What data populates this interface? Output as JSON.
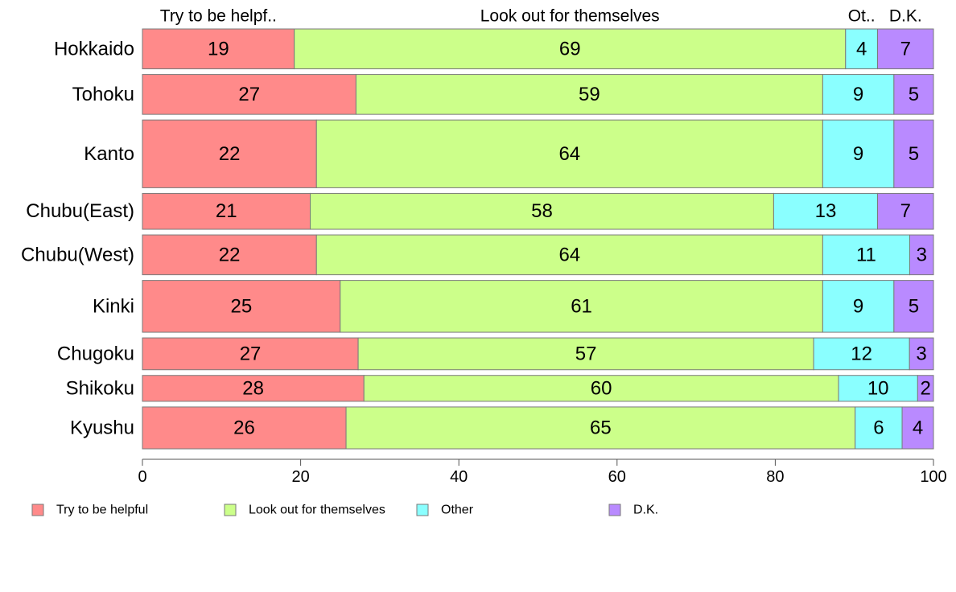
{
  "chart_data": {
    "type": "bar",
    "orientation": "horizontal",
    "stacked": true,
    "categories": [
      "Hokkaido",
      "Tohoku",
      "Kanto",
      "Chubu(East)",
      "Chubu(West)",
      "Kinki",
      "Chugoku",
      "Shikoku",
      "Kyushu"
    ],
    "series": [
      {
        "name": "Try to be helpful",
        "color": "#ff8a8a",
        "values": [
          19,
          27,
          22,
          21,
          22,
          25,
          27,
          28,
          26
        ]
      },
      {
        "name": "Look out for themselves",
        "color": "#ccff8a",
        "values": [
          69,
          59,
          64,
          58,
          64,
          61,
          57,
          60,
          65
        ]
      },
      {
        "name": "Other",
        "color": "#8affff",
        "values": [
          4,
          9,
          9,
          13,
          11,
          9,
          12,
          10,
          6
        ]
      },
      {
        "name": "D.K.",
        "color": "#b98aff",
        "values": [
          7,
          5,
          5,
          7,
          3,
          5,
          3,
          2,
          4
        ]
      }
    ],
    "bar_weights": [
      1,
      1,
      1.7,
      0.9,
      1,
      1.3,
      0.8,
      0.65,
      1.05
    ],
    "top_labels": [
      "Try to be helpf..",
      "Look out for themselves",
      "Ot..",
      "D.K."
    ],
    "xlim": [
      0,
      100
    ],
    "x_ticks": [
      "0",
      "20",
      "40",
      "60",
      "80",
      "100"
    ],
    "legend_position": "bottom",
    "grid": false
  }
}
